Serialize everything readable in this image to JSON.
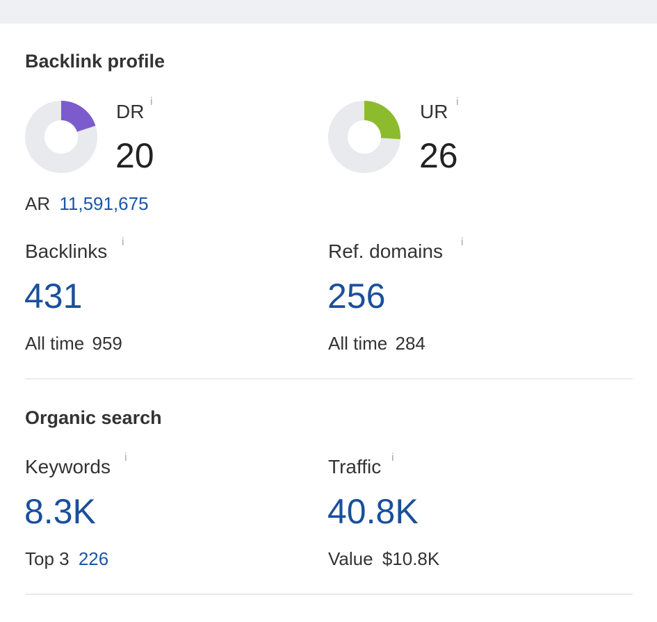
{
  "backlink_profile": {
    "title": "Backlink profile",
    "dr": {
      "label": "DR",
      "info": "i",
      "value": "20",
      "fraction": 0.2,
      "color": "#7c5ccc"
    },
    "ur": {
      "label": "UR",
      "info": "i",
      "value": "26",
      "fraction": 0.26,
      "color": "#8dbb2e"
    },
    "ar": {
      "label": "AR",
      "value": "11,591,675"
    },
    "backlinks": {
      "label": "Backlinks",
      "info": "i",
      "value": "431",
      "sub_label": "All time",
      "sub_value": "959"
    },
    "ref_domains": {
      "label": "Ref. domains",
      "info": "i",
      "value": "256",
      "sub_label": "All time",
      "sub_value": "284"
    }
  },
  "organic_search": {
    "title": "Organic search",
    "keywords": {
      "label": "Keywords",
      "info": "i",
      "value": "8.3K",
      "sub_label": "Top 3",
      "sub_value": "226"
    },
    "traffic": {
      "label": "Traffic",
      "info": "i",
      "value": "40.8K",
      "sub_label": "Value",
      "sub_value": "$10.8K"
    }
  },
  "colors": {
    "donut_track": "#e8eaee",
    "metric_blue": "#1a4f9c",
    "link_blue": "#1a56a5"
  }
}
